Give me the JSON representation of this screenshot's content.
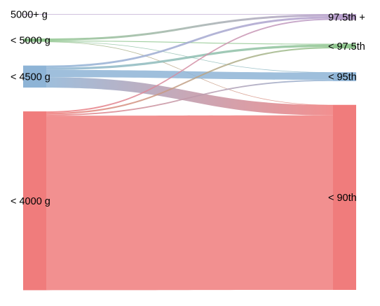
{
  "chart_data": {
    "type": "sankey",
    "title": "",
    "left_nodes": [
      {
        "id": "L5000p",
        "label": "5000+ g",
        "value": 0.3,
        "color": "#B79FCB"
      },
      {
        "id": "L5000",
        "label": "< 5000 g",
        "value": 2.5,
        "color": "#8FC68E"
      },
      {
        "id": "L4500",
        "label": "< 4500 g",
        "value": 17,
        "color": "#8EB4D6"
      },
      {
        "id": "L4000",
        "label": "< 4000 g",
        "value": 138,
        "color": "#F07C7C"
      }
    ],
    "right_nodes": [
      {
        "id": "R975p",
        "label": "97.5th +",
        "value": 4.6,
        "color": "#B79FCB"
      },
      {
        "id": "R975",
        "label": "< 97.5th",
        "value": 3.6,
        "color": "#8FC68E"
      },
      {
        "id": "R95",
        "label": "< 95th",
        "value": 6.8,
        "color": "#8EB4D6"
      },
      {
        "id": "R90",
        "label": "< 90th",
        "value": 142.8,
        "color": "#F07C7C"
      }
    ],
    "links": [
      {
        "source": "L5000p",
        "target": "R975p",
        "value": 0.3
      },
      {
        "source": "L5000",
        "target": "R975p",
        "value": 1.6
      },
      {
        "source": "L5000",
        "target": "R975",
        "value": 0.6
      },
      {
        "source": "L5000",
        "target": "R95",
        "value": 0.2
      },
      {
        "source": "L5000",
        "target": "R90",
        "value": 0.1
      },
      {
        "source": "L4500",
        "target": "R975p",
        "value": 1.6
      },
      {
        "source": "L4500",
        "target": "R975",
        "value": 1.8
      },
      {
        "source": "L4500",
        "target": "R95",
        "value": 5.6
      },
      {
        "source": "L4500",
        "target": "R90",
        "value": 8.0
      },
      {
        "source": "L4000",
        "target": "R975p",
        "value": 1.1
      },
      {
        "source": "L4000",
        "target": "R975",
        "value": 1.2
      },
      {
        "source": "L4000",
        "target": "R95",
        "value": 1.0
      },
      {
        "source": "L4000",
        "target": "R90",
        "value": 134.7
      }
    ]
  }
}
